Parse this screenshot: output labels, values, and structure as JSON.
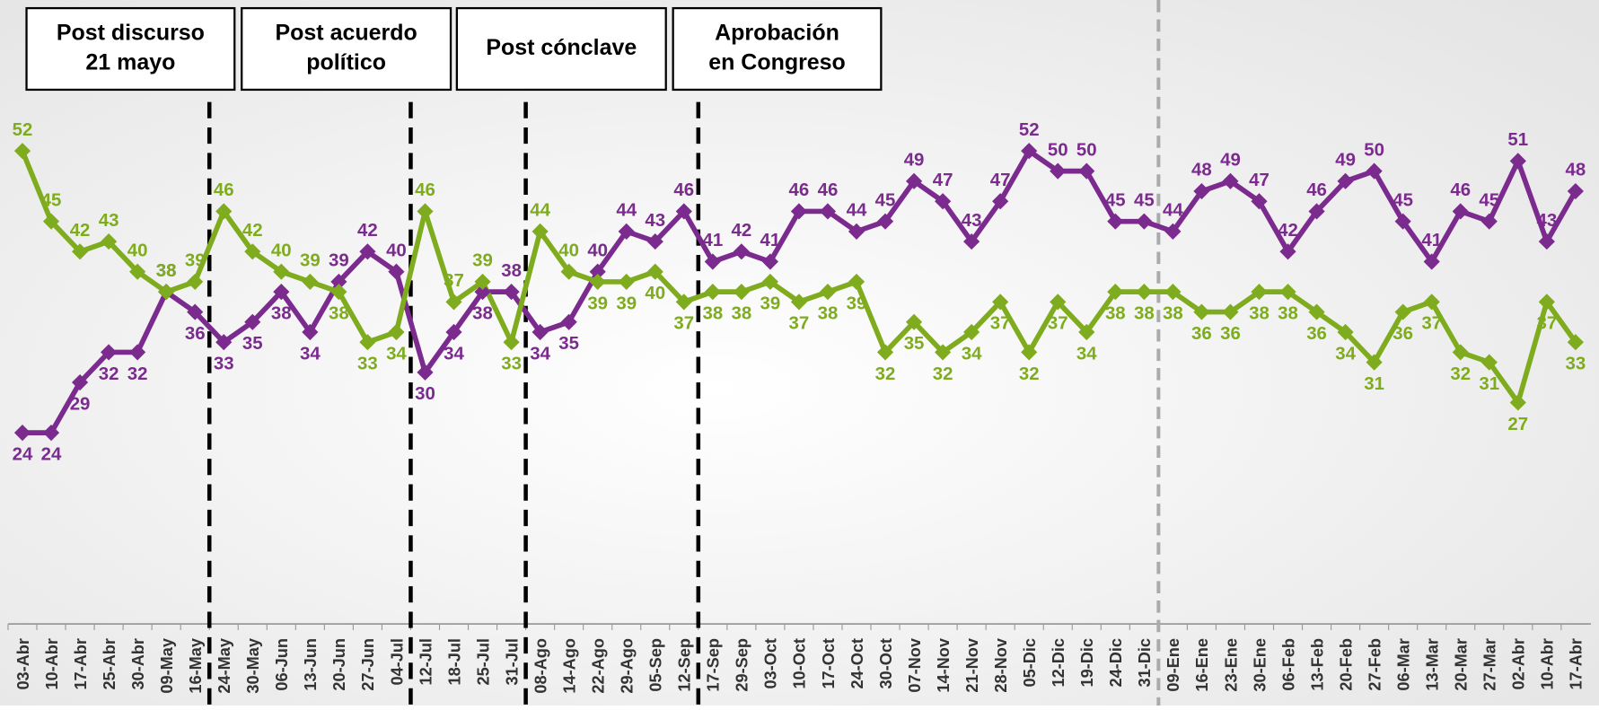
{
  "chart_data": {
    "type": "line",
    "categories": [
      "03-Abr",
      "10-Abr",
      "17-Abr",
      "25-Abr",
      "30-Abr",
      "09-May",
      "16-May",
      "24-May",
      "30-May",
      "06-Jun",
      "13-Jun",
      "20-Jun",
      "27-Jun",
      "04-Jul",
      "12-Jul",
      "18-Jul",
      "25-Jul",
      "31-Jul",
      "08-Ago",
      "14-Ago",
      "22-Ago",
      "29-Ago",
      "05-Sep",
      "12-Sep",
      "17-Sep",
      "29-Sep",
      "03-Oct",
      "10-Oct",
      "17-Oct",
      "24-Oct",
      "30-Oct",
      "07-Nov",
      "14-Nov",
      "21-Nov",
      "28-Nov",
      "05-Dic",
      "12-Dic",
      "19-Dic",
      "24-Dic",
      "31-Dic",
      "09-Ene",
      "16-Ene",
      "23-Ene",
      "30-Ene",
      "06-Feb",
      "13-Feb",
      "20-Feb",
      "27-Feb",
      "06-Mar",
      "13-Mar",
      "20-Mar",
      "27-Mar",
      "02-Abr",
      "10-Abr",
      "17-Abr"
    ],
    "series": [
      {
        "color": "#7b2a8e",
        "values": [
          24,
          24,
          29,
          32,
          32,
          38,
          36,
          33,
          35,
          38,
          34,
          39,
          42,
          40,
          30,
          34,
          38,
          38,
          34,
          35,
          40,
          44,
          43,
          46,
          41,
          42,
          41,
          46,
          46,
          44,
          45,
          49,
          47,
          43,
          47,
          52,
          50,
          50,
          45,
          45,
          44,
          48,
          49,
          47,
          42,
          46,
          49,
          50,
          45,
          41,
          46,
          45,
          51,
          43,
          48
        ]
      },
      {
        "color": "#7fac1e",
        "values": [
          52,
          45,
          42,
          43,
          40,
          38,
          39,
          46,
          42,
          40,
          39,
          38,
          33,
          34,
          46,
          37,
          39,
          33,
          44,
          40,
          39,
          39,
          40,
          37,
          38,
          38,
          39,
          37,
          38,
          39,
          32,
          35,
          32,
          34,
          37,
          32,
          37,
          34,
          38,
          38,
          38,
          36,
          36,
          38,
          38,
          36,
          34,
          31,
          36,
          37,
          32,
          31,
          27,
          37,
          33
        ]
      }
    ],
    "ylim": [
      5,
      67
    ],
    "annotations": [
      {
        "text": [
          "Post discurso",
          "21 mayo"
        ]
      },
      {
        "text": [
          "Post acuerdo",
          "político"
        ]
      },
      {
        "text": [
          "Post cónclave"
        ]
      },
      {
        "text": [
          "Aprobación",
          "en Congreso"
        ]
      }
    ]
  }
}
